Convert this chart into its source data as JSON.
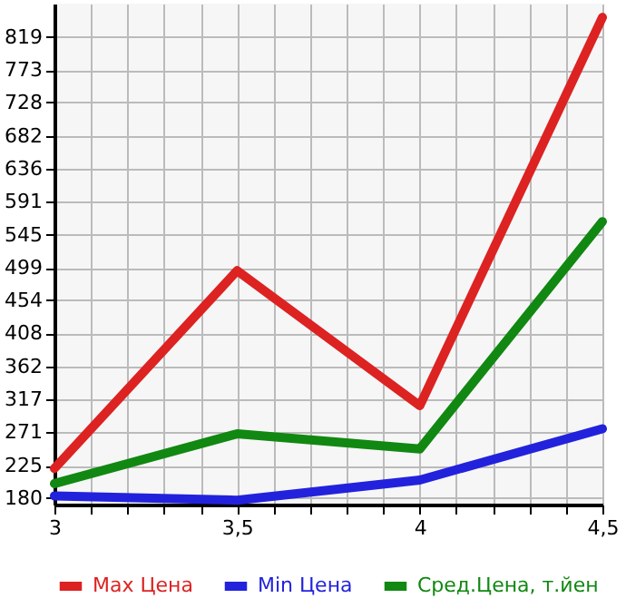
{
  "chart_data": {
    "type": "line",
    "x": [
      3,
      3.5,
      4,
      4.5
    ],
    "series": [
      {
        "name": "Max Цена",
        "color": "#dd2222",
        "values": [
          221,
          495,
          308,
          846
        ]
      },
      {
        "name": "Min Цена",
        "color": "#2222dd",
        "values": [
          183,
          177,
          205,
          276
        ]
      },
      {
        "name": "Сред.Цена, т.йен",
        "color": "#118811",
        "values": [
          200,
          269,
          248,
          563
        ]
      }
    ],
    "xlim": [
      3,
      4.5
    ],
    "xticks": [
      3,
      {
        "value": 3.1,
        "label": null
      },
      {
        "value": 3.2,
        "label": null
      },
      {
        "value": 3.3,
        "label": null
      },
      {
        "value": 3.4,
        "label": null
      },
      {
        "value": 3.5,
        "label": "3,5"
      },
      {
        "value": 3.6,
        "label": null
      },
      {
        "value": 3.7,
        "label": null
      },
      {
        "value": 3.8,
        "label": null
      },
      {
        "value": 3.9,
        "label": null
      },
      4,
      {
        "value": 4.1,
        "label": null
      },
      {
        "value": 4.2,
        "label": null
      },
      {
        "value": 4.3,
        "label": null
      },
      {
        "value": 4.4,
        "label": null
      },
      {
        "value": 4.5,
        "label": "4,5"
      }
    ],
    "ylim": [
      171,
      865
    ],
    "yticks": [
      180,
      225,
      271,
      317,
      362,
      408,
      454,
      499,
      545,
      591,
      636,
      682,
      728,
      773,
      819
    ],
    "grid": true,
    "legend": "bottom",
    "marker": "none",
    "line_style": "solid"
  }
}
